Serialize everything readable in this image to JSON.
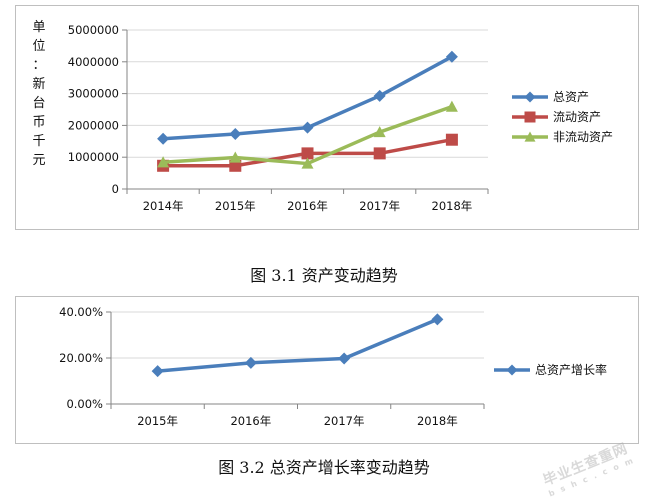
{
  "chart_data": [
    {
      "type": "line",
      "title": "",
      "xlabel": "",
      "ylabel": "单位：新台币千元",
      "categories": [
        "2014年",
        "2015年",
        "2016年",
        "2017年",
        "2018年"
      ],
      "yticks": [
        "0",
        "1000000",
        "2000000",
        "3000000",
        "4000000",
        "5000000"
      ],
      "ylim": [
        0,
        5000000
      ],
      "grid": true,
      "legend_position": "right",
      "series": [
        {
          "name": "总资产",
          "values": [
            1580000,
            1730000,
            1930000,
            2930000,
            4160000
          ],
          "color": "#4a7ebb",
          "marker": "diamond"
        },
        {
          "name": "流动资产",
          "values": [
            730000,
            730000,
            1120000,
            1120000,
            1550000
          ],
          "color": "#be4b48",
          "marker": "square"
        },
        {
          "name": "非流动资产",
          "values": [
            840000,
            990000,
            800000,
            1790000,
            2590000
          ],
          "color": "#9bbb59",
          "marker": "triangle"
        }
      ]
    },
    {
      "type": "line",
      "title": "",
      "xlabel": "",
      "ylabel": "",
      "categories": [
        "2015年",
        "2016年",
        "2017年",
        "2018年"
      ],
      "yticks": [
        "0.00%",
        "20.00%",
        "40.00%"
      ],
      "ylim": [
        0,
        40
      ],
      "grid": true,
      "legend_position": "right",
      "series": [
        {
          "name": "总资产增长率",
          "values": [
            14.3,
            17.9,
            19.8,
            36.8
          ],
          "color": "#4a7ebb",
          "marker": "diamond"
        }
      ]
    }
  ],
  "captions": {
    "fig1": "图 3.1  资产变动趋势",
    "fig2": "图 3.2  总资产增长率变动趋势"
  },
  "watermark": {
    "text": "毕业生查重网",
    "sub": "b s h c . c o m"
  }
}
